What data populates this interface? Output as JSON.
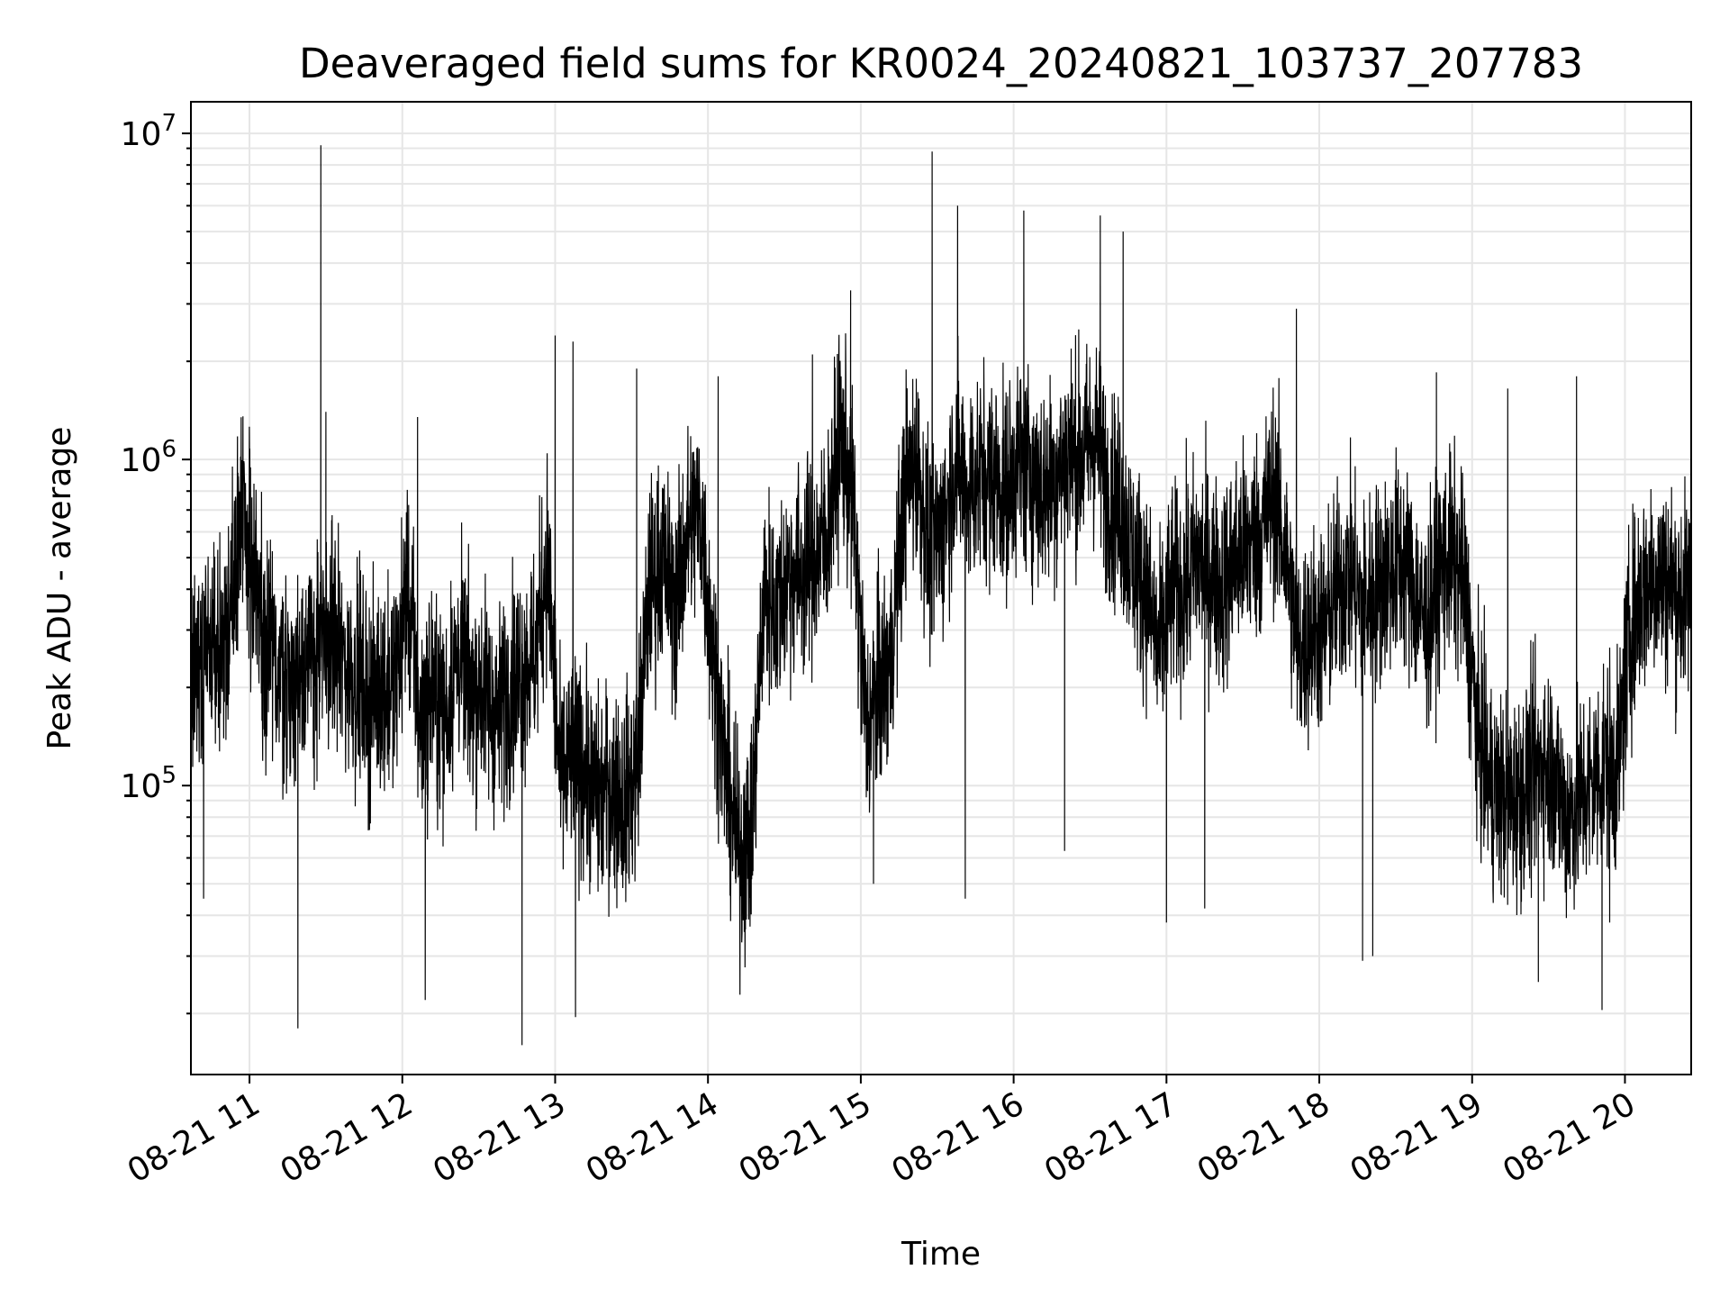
{
  "chart_data": {
    "type": "line",
    "title": "Deaveraged field sums for KR0024_20240821_103737_207783",
    "xlabel": "Time",
    "ylabel": "Peak ADU - average",
    "x_scale": "time",
    "y_scale": "log",
    "xlim": [
      "2024-08-21 10:37",
      "2024-08-21 20:26"
    ],
    "ylim": [
      13000,
      12500000
    ],
    "grid": true,
    "x_ticks": [
      "08-21 11",
      "08-21 12",
      "08-21 13",
      "08-21 14",
      "08-21 15",
      "08-21 16",
      "08-21 17",
      "08-21 18",
      "08-21 19",
      "08-21 20"
    ],
    "y_ticks": [
      {
        "base": "10",
        "exp": "5",
        "value": 100000
      },
      {
        "base": "10",
        "exp": "6",
        "value": 1000000
      },
      {
        "base": "10",
        "exp": "7",
        "value": 10000000
      }
    ],
    "series": [
      {
        "color": "#000000",
        "x": [
          "10:37",
          "10:42",
          "10:47",
          "10:52",
          "10:57",
          "11:02",
          "11:07",
          "11:12",
          "11:17",
          "11:22",
          "11:27",
          "11:32",
          "11:37",
          "11:42",
          "11:47",
          "11:52",
          "11:57",
          "12:02",
          "12:07",
          "12:12",
          "12:17",
          "12:22",
          "12:27",
          "12:32",
          "12:37",
          "12:42",
          "12:47",
          "12:52",
          "12:57",
          "13:02",
          "13:07",
          "13:12",
          "13:17",
          "13:22",
          "13:27",
          "13:32",
          "13:37",
          "13:42",
          "13:47",
          "13:52",
          "13:57",
          "14:02",
          "14:07",
          "14:12",
          "14:17",
          "14:22",
          "14:27",
          "14:32",
          "14:37",
          "14:42",
          "14:47",
          "14:52",
          "14:57",
          "15:02",
          "15:07",
          "15:12",
          "15:17",
          "15:22",
          "15:27",
          "15:32",
          "15:37",
          "15:42",
          "15:47",
          "15:52",
          "15:57",
          "16:02",
          "16:07",
          "16:12",
          "16:17",
          "16:22",
          "16:27",
          "16:32",
          "16:37",
          "16:42",
          "16:47",
          "16:52",
          "16:57",
          "17:02",
          "17:07",
          "17:12",
          "17:17",
          "17:22",
          "17:27",
          "17:32",
          "17:37",
          "17:42",
          "17:47",
          "17:52",
          "17:57",
          "18:02",
          "18:07",
          "18:12",
          "18:17",
          "18:22",
          "18:27",
          "18:32",
          "18:37",
          "18:42",
          "18:47",
          "18:52",
          "18:57",
          "19:02",
          "19:07",
          "19:12",
          "19:17",
          "19:22",
          "19:27",
          "19:32",
          "19:37",
          "19:42",
          "19:47",
          "19:52",
          "19:57",
          "20:02",
          "20:07",
          "20:12",
          "20:17",
          "20:22",
          "20:26"
        ],
        "y": [
          200000,
          250000,
          240000,
          300000,
          700000,
          400000,
          250000,
          230000,
          210000,
          250000,
          250000,
          300000,
          230000,
          220000,
          180000,
          200000,
          200000,
          420000,
          150000,
          200000,
          160000,
          250000,
          200000,
          200000,
          160000,
          200000,
          230000,
          250000,
          500000,
          100000,
          120000,
          110000,
          90000,
          100000,
          90000,
          110000,
          400000,
          500000,
          350000,
          600000,
          700000,
          250000,
          110000,
          60000,
          70000,
          400000,
          350000,
          450000,
          450000,
          500000,
          600000,
          1200000,
          700000,
          150000,
          200000,
          250000,
          800000,
          1000000,
          500000,
          600000,
          1000000,
          800000,
          900000,
          900000,
          800000,
          1000000,
          900000,
          800000,
          900000,
          1100000,
          1000000,
          1200000,
          800000,
          700000,
          500000,
          400000,
          250000,
          400000,
          400000,
          500000,
          450000,
          400000,
          500000,
          550000,
          600000,
          800000,
          500000,
          250000,
          300000,
          300000,
          400000,
          450000,
          350000,
          400000,
          450000,
          500000,
          400000,
          300000,
          450000,
          500000,
          400000,
          150000,
          100000,
          90000,
          90000,
          100000,
          120000,
          110000,
          80000,
          90000,
          100000,
          120000,
          110000,
          300000,
          400000,
          450000,
          420000,
          380000,
          400000
        ]
      }
    ],
    "spikes": [
      {
        "x": "10:42",
        "y": 45000
      },
      {
        "x": "11:19",
        "y": 18000
      },
      {
        "x": "11:28",
        "y": 9200000
      },
      {
        "x": "11:30",
        "y": 1400000
      },
      {
        "x": "12:06",
        "y": 1350000
      },
      {
        "x": "12:09",
        "y": 22000
      },
      {
        "x": "12:47",
        "y": 16000
      },
      {
        "x": "13:00",
        "y": 2400000
      },
      {
        "x": "13:07",
        "y": 2300000
      },
      {
        "x": "13:08",
        "y": 19500
      },
      {
        "x": "13:32",
        "y": 1900000
      },
      {
        "x": "14:04",
        "y": 1800000
      },
      {
        "x": "14:41",
        "y": 2100000
      },
      {
        "x": "14:56",
        "y": 3300000
      },
      {
        "x": "15:05",
        "y": 50000
      },
      {
        "x": "15:28",
        "y": 8800000
      },
      {
        "x": "15:38",
        "y": 6000000
      },
      {
        "x": "15:41",
        "y": 45000
      },
      {
        "x": "16:04",
        "y": 5800000
      },
      {
        "x": "16:20",
        "y": 63000
      },
      {
        "x": "16:34",
        "y": 5600000
      },
      {
        "x": "16:43",
        "y": 5000000
      },
      {
        "x": "17:00",
        "y": 38000
      },
      {
        "x": "17:15",
        "y": 42000
      },
      {
        "x": "17:51",
        "y": 2900000
      },
      {
        "x": "18:17",
        "y": 29000
      },
      {
        "x": "18:21",
        "y": 30000
      },
      {
        "x": "18:46",
        "y": 1850000
      },
      {
        "x": "19:14",
        "y": 1650000
      },
      {
        "x": "19:26",
        "y": 25000
      },
      {
        "x": "19:41",
        "y": 1800000
      },
      {
        "x": "19:51",
        "y": 20500
      },
      {
        "x": "19:54",
        "y": 38000
      },
      {
        "x": "20:26",
        "y": 1000000
      }
    ]
  }
}
